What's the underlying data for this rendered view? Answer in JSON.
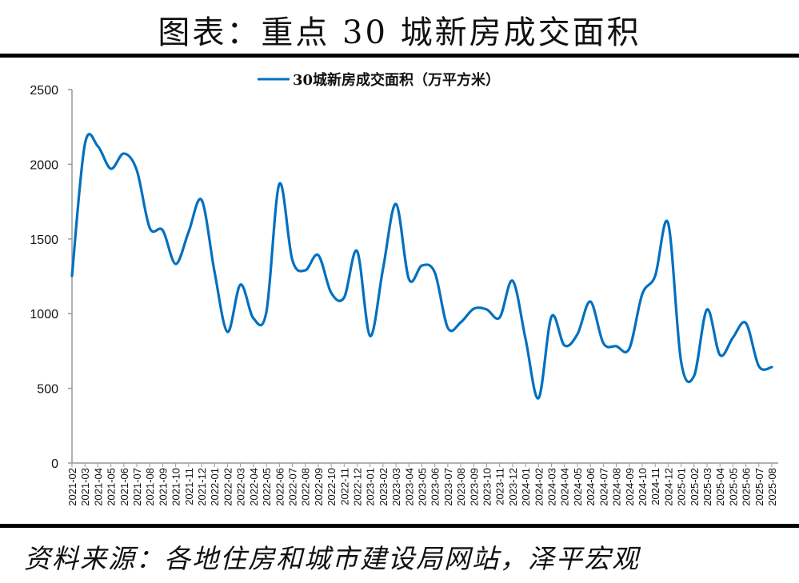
{
  "header": {
    "title": "图表：重点 30 城新房成交面积"
  },
  "footer": {
    "source": "资料来源：各地住房和城市建设局网站，泽平宏观"
  },
  "chart_data": {
    "type": "line",
    "title": "",
    "xlabel": "",
    "ylabel": "",
    "ylim": [
      0,
      2500
    ],
    "yticks": [
      0,
      500,
      1000,
      1500,
      2000,
      2500
    ],
    "grid": false,
    "legend_position": "top-center",
    "line_color": "#0070C0",
    "smooth": true,
    "x": [
      "2021-02",
      "2021-03",
      "2021-04",
      "2021-05",
      "2021-06",
      "2021-07",
      "2021-08",
      "2021-09",
      "2021-10",
      "2021-11",
      "2021-12",
      "2022-01",
      "2022-02",
      "2022-03",
      "2022-04",
      "2022-05",
      "2022-06",
      "2022-07",
      "2022-08",
      "2022-09",
      "2022-10",
      "2022-11",
      "2022-12",
      "2023-01",
      "2023-02",
      "2023-03",
      "2023-04",
      "2023-05",
      "2023-06",
      "2023-07",
      "2023-08",
      "2023-09",
      "2023-10",
      "2023-11",
      "2023-12",
      "2024-01",
      "2024-02",
      "2024-03",
      "2024-04",
      "2024-05",
      "2024-06",
      "2024-07",
      "2024-08",
      "2024-09",
      "2024-10",
      "2024-11",
      "2024-12",
      "2025-01",
      "2025-02",
      "2025-03",
      "2025-04",
      "2025-05",
      "2025-06",
      "2025-07",
      "2025-08"
    ],
    "series": [
      {
        "name": "30城新房成交面积（万平方米）",
        "values": [
          1253,
          2136,
          2120,
          1970,
          2072,
          1960,
          1574,
          1558,
          1333,
          1547,
          1761,
          1280,
          878,
          1194,
          969,
          1012,
          1868,
          1360,
          1290,
          1392,
          1140,
          1108,
          1419,
          851,
          1300,
          1734,
          1231,
          1322,
          1274,
          905,
          942,
          1033,
          1028,
          974,
          1220,
          830,
          434,
          980,
          787,
          862,
          1081,
          803,
          782,
          765,
          1130,
          1253,
          1606,
          680,
          583,
          1028,
          723,
          840,
          937,
          648,
          642
        ]
      }
    ]
  }
}
